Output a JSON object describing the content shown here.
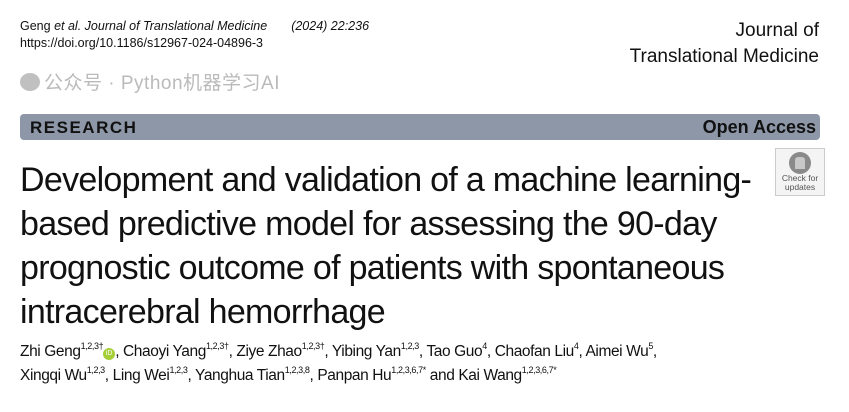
{
  "citation": {
    "author": "Geng",
    "etal": "et al.",
    "journal": "Journal of Translational Medicine",
    "volume": "(2024) 22:236",
    "doi": "https://doi.org/10.1186/s12967-024-04896-3"
  },
  "journal_name": {
    "line1": "Journal of",
    "line2": "Translational Medicine"
  },
  "banner": {
    "type": "RESEARCH",
    "access": "Open Access",
    "color": "#8d97a8"
  },
  "badge": {
    "line1": "Check for",
    "line2": "updates"
  },
  "title": "Development and validation of a machine learning-based predictive model for assessing the 90-day prognostic outcome of patients with spontaneous intracerebral hemorrhage",
  "authors": [
    {
      "name": "Zhi Geng",
      "sup": "1,2,3†",
      "orcid": true
    },
    {
      "name": "Chaoyi Yang",
      "sup": "1,2,3†"
    },
    {
      "name": "Ziye Zhao",
      "sup": "1,2,3†"
    },
    {
      "name": "Yibing Yan",
      "sup": "1,2,3"
    },
    {
      "name": "Tao Guo",
      "sup": "4"
    },
    {
      "name": "Chaofan Liu",
      "sup": "4"
    },
    {
      "name": "Aimei Wu",
      "sup": "5"
    },
    {
      "name": "Xingqi Wu",
      "sup": "1,2,3"
    },
    {
      "name": "Ling Wei",
      "sup": "1,2,3"
    },
    {
      "name": "Yanghua Tian",
      "sup": "1,2,3,8"
    },
    {
      "name": "Panpan Hu",
      "sup": "1,2,3,6,7*"
    },
    {
      "name": "Kai Wang",
      "sup": "1,2,3,6,7*"
    }
  ],
  "authors_and": "and",
  "orcid_label": "iD",
  "watermark": "公众号 · Python机器学习AI"
}
